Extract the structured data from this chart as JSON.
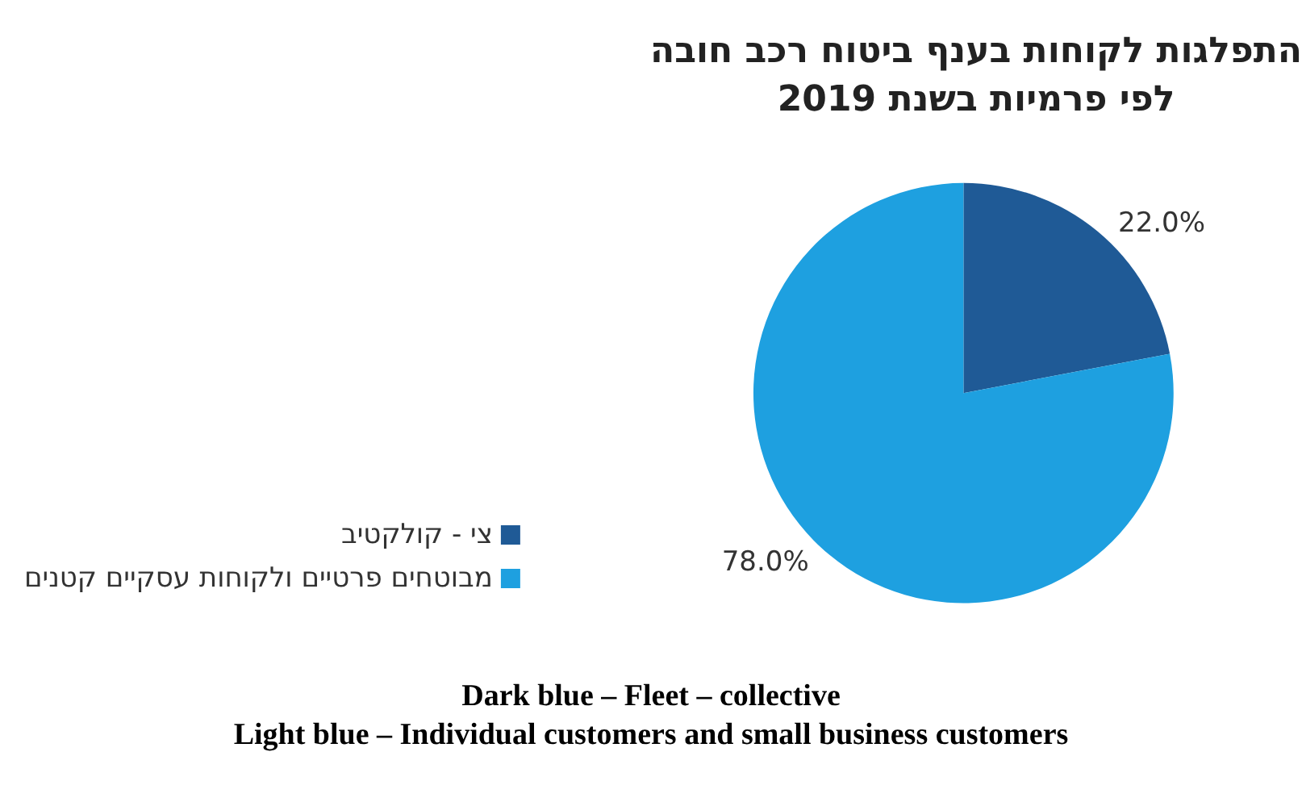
{
  "chart_data": {
    "type": "pie",
    "title": "התפלגות לקוחות בענף ביטוח רכב חובה\nלפי פרמיות בשנת 2019",
    "categories": [
      "צי - קולקטיב",
      "מבוטחים פרטיים ולקוחות עסקיים קטנים"
    ],
    "values": [
      22.0,
      78.0
    ],
    "value_labels": [
      "22.0%",
      "78.0%"
    ],
    "colors": [
      "#1f5a96",
      "#1ea0e0"
    ],
    "legend": "left",
    "annotations": [
      "Dark blue – Fleet – collective",
      "Light blue – Individual customers and small business customers"
    ]
  }
}
